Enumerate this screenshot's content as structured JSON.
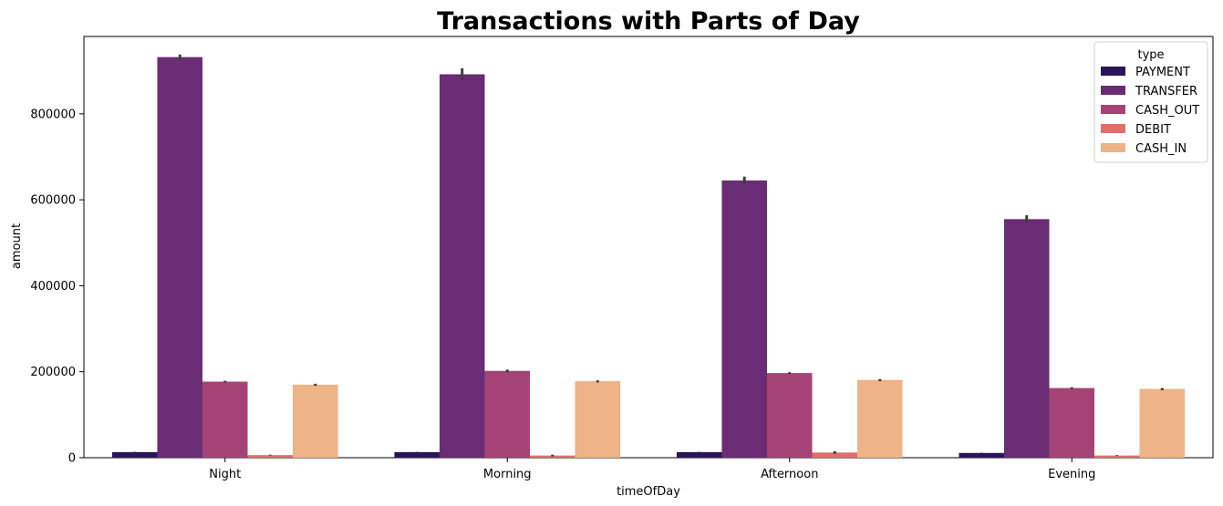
{
  "chart_data": {
    "type": "bar",
    "title": "Transactions with Parts of Day",
    "xlabel": "timeOfDay",
    "ylabel": "amount",
    "categories": [
      "Night",
      "Morning",
      "Afternoon",
      "Evening"
    ],
    "ylim": [
      0,
      980000
    ],
    "yticks": [
      0,
      200000,
      400000,
      600000,
      800000
    ],
    "ytick_labels": [
      "0",
      "200000",
      "400000",
      "600000",
      "800000"
    ],
    "grid": false,
    "legend": {
      "title": "type",
      "placement": "top-right"
    },
    "series": [
      {
        "name": "PAYMENT",
        "color": "#2a1558",
        "values": [
          13000,
          13000,
          13000,
          11000
        ],
        "error": [
          [
            12500,
            13500
          ],
          [
            12500,
            13500
          ],
          [
            12500,
            13500
          ],
          [
            10500,
            11500
          ]
        ]
      },
      {
        "name": "TRANSFER",
        "color": "#6a2c74",
        "values": [
          932000,
          892000,
          645000,
          555000
        ],
        "error": [
          [
            926000,
            938000
          ],
          [
            878000,
            906000
          ],
          [
            637000,
            654000
          ],
          [
            547000,
            564000
          ]
        ]
      },
      {
        "name": "CASH_OUT",
        "color": "#a64376",
        "values": [
          177000,
          202000,
          197000,
          162000
        ],
        "error": [
          [
            175000,
            179000
          ],
          [
            198000,
            205000
          ],
          [
            194000,
            199000
          ],
          [
            160000,
            164000
          ]
        ]
      },
      {
        "name": "DEBIT",
        "color": "#e26e6a",
        "values": [
          6000,
          5000,
          12000,
          5000
        ],
        "error": [
          [
            5000,
            7000
          ],
          [
            3000,
            7000
          ],
          [
            9000,
            15000
          ],
          [
            4000,
            6000
          ]
        ]
      },
      {
        "name": "CASH_IN",
        "color": "#eeb386",
        "values": [
          170000,
          178000,
          181000,
          160000
        ],
        "error": [
          [
            167000,
            172000
          ],
          [
            175000,
            180000
          ],
          [
            178000,
            183000
          ],
          [
            157000,
            162000
          ]
        ]
      }
    ]
  }
}
